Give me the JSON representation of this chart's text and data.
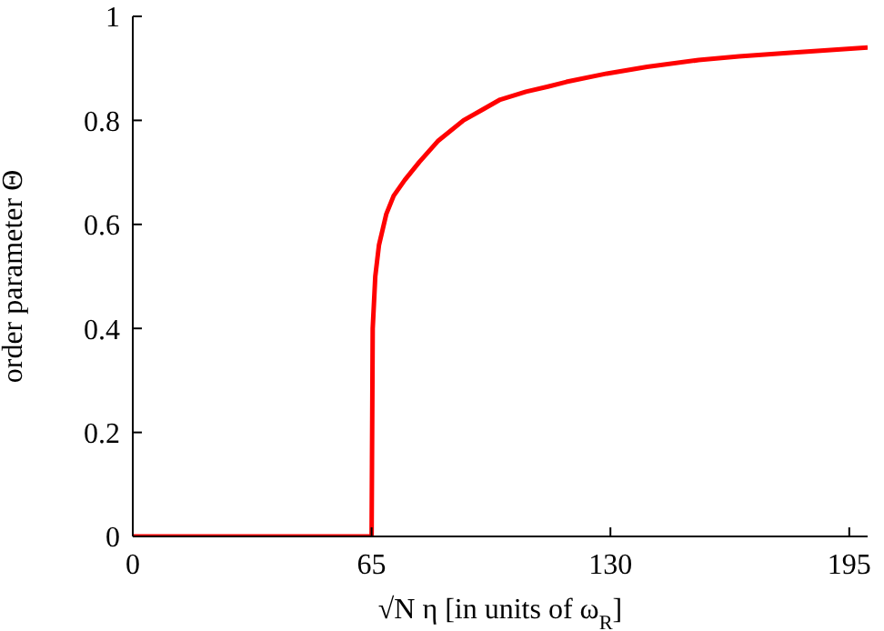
{
  "chart_data": {
    "type": "line",
    "xlabel": "√N η [in units of ω$_{R}$]",
    "ylabel": "order parameter Θ",
    "x": [
      0,
      65,
      65.3,
      66,
      67,
      69,
      71,
      74,
      78,
      83,
      90,
      95,
      100,
      107,
      113,
      118,
      129,
      140,
      154,
      165,
      179,
      200
    ],
    "series": [
      {
        "color": "#ff0000",
        "values": [
          0,
          0,
          0.4,
          0.5,
          0.56,
          0.62,
          0.655,
          0.685,
          0.72,
          0.76,
          0.8,
          0.82,
          0.84,
          0.855,
          0.865,
          0.874,
          0.89,
          0.903,
          0.916,
          0.923,
          0.93,
          0.94
        ]
      }
    ],
    "xlim": [
      0,
      200
    ],
    "xticks": [
      0,
      65,
      130,
      195
    ],
    "ylim": [
      0,
      1
    ],
    "yticks": [
      0,
      {
        "value": 0.2,
        "label": "0.2"
      },
      {
        "value": 0.4,
        "label": "0.4"
      },
      {
        "value": 0.6,
        "label": "0.6"
      },
      {
        "value": 0.8,
        "label": "0.8"
      },
      1
    ],
    "grid": false,
    "legend": false,
    "marker": "none",
    "line_style": "solid"
  }
}
